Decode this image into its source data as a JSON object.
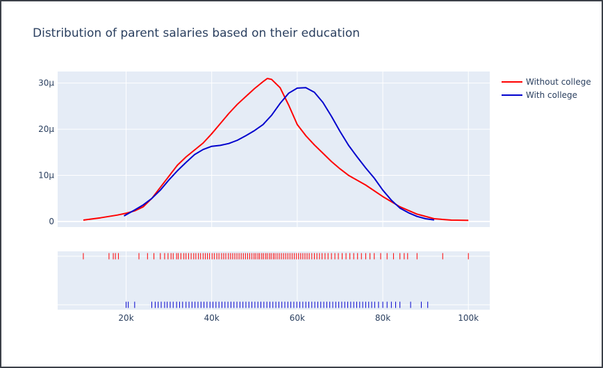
{
  "chart_data": {
    "type": "line",
    "title": "Distribution of parent salaries based on their education",
    "xlabel": "",
    "ylabel": "",
    "xlim": [
      4000,
      105000
    ],
    "ylim": [
      -1.2e-06,
      3.25e-05
    ],
    "xticks": [
      20000,
      40000,
      60000,
      80000,
      100000
    ],
    "xtick_labels": [
      "20k",
      "40k",
      "60k",
      "80k",
      "100k"
    ],
    "yticks": [
      0,
      1e-05,
      2e-05,
      3e-05
    ],
    "ytick_labels": [
      "0",
      "10µ",
      "20µ",
      "30µ"
    ],
    "grid": true,
    "legend_placement": "top-right outside",
    "series": [
      {
        "name": "Without college",
        "color": "#ff0000",
        "x": [
          10000,
          14000,
          18000,
          20000,
          22000,
          24000,
          26000,
          28000,
          30000,
          32000,
          34000,
          36000,
          38000,
          40000,
          42000,
          44000,
          46000,
          48000,
          50000,
          52000,
          53000,
          54000,
          56000,
          58000,
          60000,
          62000,
          64000,
          66000,
          68000,
          70000,
          72000,
          76000,
          80000,
          84000,
          88000,
          92000,
          96000,
          100000
        ],
        "y": [
          3e-07,
          8e-07,
          1.4e-06,
          1.8e-06,
          2.3e-06,
          3.2e-06,
          5e-06,
          7.4e-06,
          9.8e-06,
          1.22e-05,
          1.4e-05,
          1.55e-05,
          1.7e-05,
          1.9e-05,
          2.12e-05,
          2.34e-05,
          2.54e-05,
          2.71e-05,
          2.88e-05,
          3.03e-05,
          3.1e-05,
          3.08e-05,
          2.9e-05,
          2.52e-05,
          2.1e-05,
          1.86e-05,
          1.66e-05,
          1.48e-05,
          1.3e-05,
          1.14e-05,
          1e-05,
          7.9e-06,
          5.4e-06,
          3.2e-06,
          1.6e-06,
          6e-07,
          3e-07,
          2.5e-07
        ]
      },
      {
        "name": "With college",
        "color": "#0000cd",
        "x": [
          19500,
          22000,
          24000,
          26000,
          28000,
          30000,
          32000,
          34000,
          36000,
          38000,
          40000,
          42000,
          44000,
          46000,
          48000,
          50000,
          52000,
          54000,
          56000,
          58000,
          60000,
          62000,
          64000,
          66000,
          68000,
          70000,
          72000,
          74000,
          76000,
          78000,
          80000,
          82000,
          84000,
          86000,
          88000,
          90000,
          92000
        ],
        "y": [
          1.2e-06,
          2.5e-06,
          3.6e-06,
          5e-06,
          6.8e-06,
          9e-06,
          1.1e-05,
          1.28e-05,
          1.45e-05,
          1.56e-05,
          1.63e-05,
          1.65e-05,
          1.69e-05,
          1.76e-05,
          1.86e-05,
          1.97e-05,
          2.1e-05,
          2.3e-05,
          2.56e-05,
          2.78e-05,
          2.89e-05,
          2.9e-05,
          2.8e-05,
          2.58e-05,
          2.28e-05,
          1.95e-05,
          1.65e-05,
          1.4e-05,
          1.16e-05,
          9.4e-06,
          6.8e-06,
          4.6e-06,
          2.9e-06,
          1.9e-06,
          1.1e-06,
          6e-07,
          3.5e-07
        ]
      }
    ],
    "rug": [
      {
        "name": "Without college",
        "color": "#ff0000",
        "values": [
          10000,
          16000,
          17000,
          17500,
          18200,
          23000,
          25000,
          26500,
          28000,
          29000,
          29800,
          30500,
          31000,
          31800,
          32200,
          32800,
          33500,
          34000,
          34600,
          35200,
          35800,
          36300,
          36900,
          37400,
          38000,
          38500,
          39000,
          39500,
          40100,
          40600,
          41200,
          41700,
          42300,
          42800,
          43300,
          43900,
          44400,
          44900,
          45400,
          45900,
          46400,
          46900,
          47400,
          47900,
          48400,
          48900,
          49400,
          49900,
          50300,
          50800,
          51200,
          51700,
          52100,
          52600,
          53000,
          53500,
          53900,
          54400,
          54800,
          55300,
          55800,
          56300,
          56800,
          57300,
          57800,
          58300,
          58800,
          59300,
          59800,
          60300,
          60800,
          61300,
          61800,
          62300,
          62800,
          63400,
          64000,
          64600,
          65200,
          65800,
          66500,
          67200,
          68000,
          68800,
          69600,
          70500,
          71400,
          72300,
          73200,
          74100,
          75000,
          76000,
          77000,
          78000,
          79500,
          81000,
          82500,
          84000,
          85000,
          85800,
          88000,
          94000,
          100000
        ]
      },
      {
        "name": "With college",
        "color": "#0000cd",
        "values": [
          20000,
          20500,
          22000,
          26000,
          26800,
          27500,
          28200,
          29000,
          29600,
          30300,
          31000,
          31800,
          32500,
          33200,
          34000,
          34700,
          35400,
          36100,
          36800,
          37500,
          38200,
          38900,
          39600,
          40300,
          41000,
          41700,
          42400,
          43100,
          43800,
          44500,
          45200,
          45900,
          46600,
          47300,
          48000,
          48700,
          49400,
          50100,
          50800,
          51500,
          52200,
          52900,
          53600,
          54300,
          55000,
          55700,
          56400,
          57100,
          57800,
          58500,
          59200,
          59900,
          60600,
          61300,
          62000,
          62700,
          63400,
          64100,
          64800,
          65500,
          66200,
          66900,
          67600,
          68300,
          69000,
          69700,
          70400,
          71100,
          71800,
          72500,
          73200,
          73900,
          74600,
          75300,
          76000,
          76700,
          77400,
          78100,
          79000,
          80000,
          81000,
          82000,
          83000,
          84000,
          86500,
          89000,
          90500
        ]
      }
    ]
  }
}
